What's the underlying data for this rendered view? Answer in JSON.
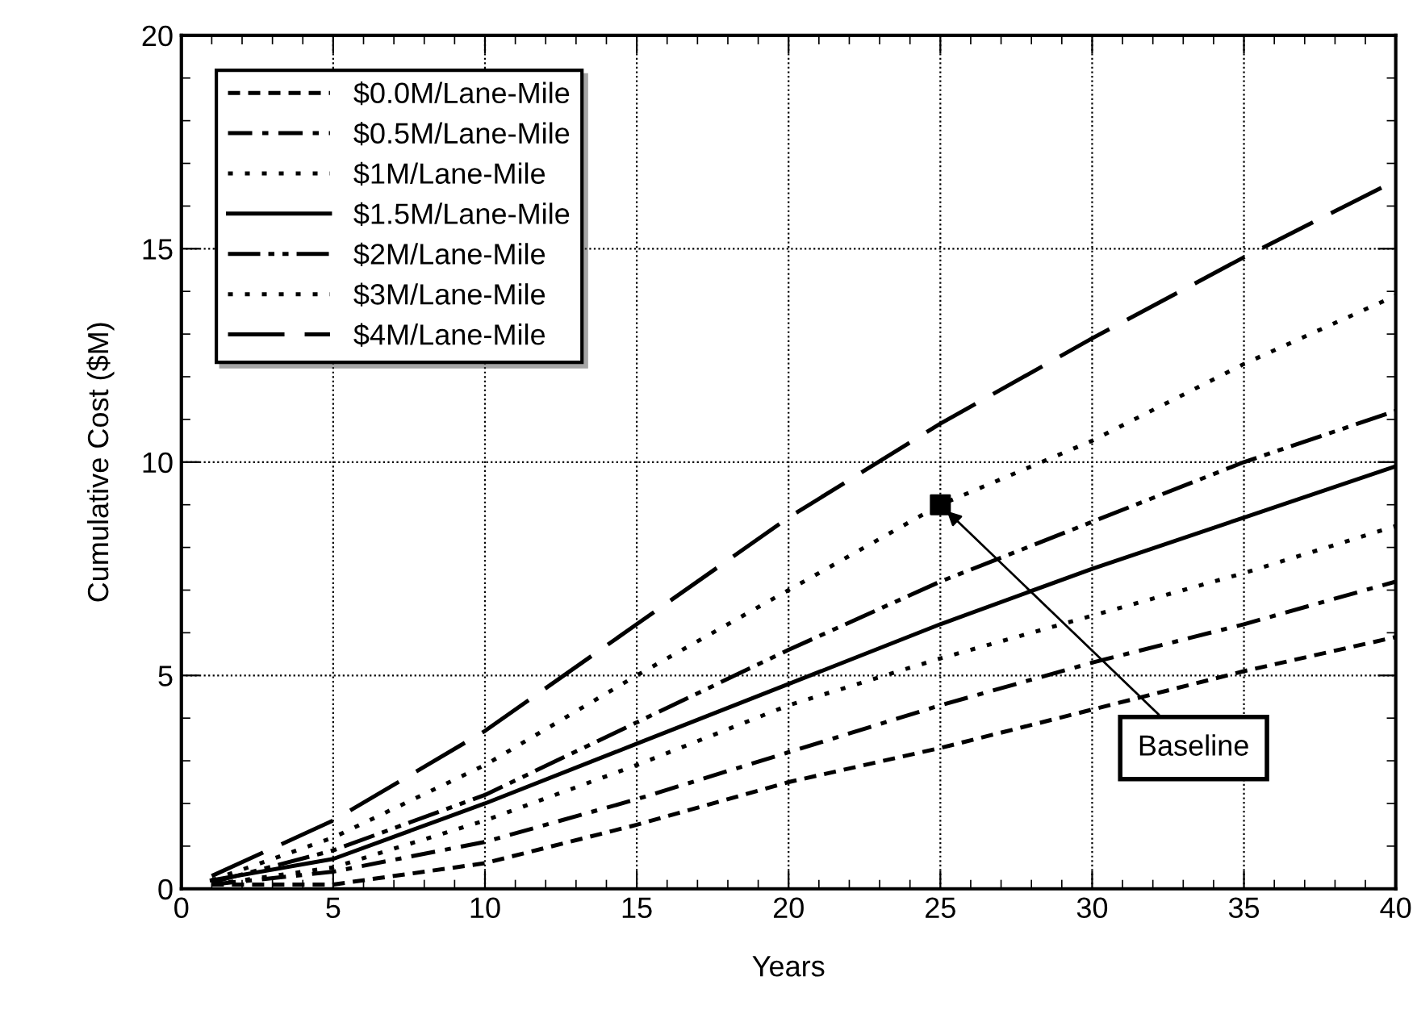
{
  "chart_data": {
    "type": "line",
    "xlabel": "Years",
    "ylabel": "Cumulative Cost ($M)",
    "xlim": [
      0,
      40
    ],
    "ylim": [
      0,
      20
    ],
    "xticks": [
      0,
      5,
      10,
      15,
      20,
      25,
      30,
      35,
      40
    ],
    "yticks": [
      0,
      5,
      10,
      15,
      20
    ],
    "grid": true,
    "legend": "top left",
    "marker": "none",
    "series": [
      {
        "name": "$0.0M/Lane-Mile",
        "color": "#000000",
        "line_style": "dashed",
        "x": [
          1,
          5,
          10,
          15,
          20,
          25,
          30,
          35,
          40
        ],
        "values": [
          0.1,
          0.1,
          0.6,
          1.5,
          2.5,
          3.3,
          4.2,
          5.1,
          5.9
        ]
      },
      {
        "name": "$0.5M/Lane-Mile",
        "color": "#000000",
        "line_style": "dashdot",
        "x": [
          1,
          5,
          10,
          15,
          20,
          25,
          30,
          35,
          40
        ],
        "values": [
          0.1,
          0.4,
          1.1,
          2.1,
          3.2,
          4.3,
          5.3,
          6.2,
          7.2
        ]
      },
      {
        "name": "$1M/Lane-Mile",
        "color": "#000000",
        "line_style": "dotted",
        "x": [
          1,
          5,
          10,
          15,
          20,
          25,
          30,
          35,
          40
        ],
        "values": [
          0.1,
          0.5,
          1.6,
          2.9,
          4.3,
          5.4,
          6.4,
          7.4,
          8.5
        ]
      },
      {
        "name": "$1.5M/Lane-Mile",
        "color": "#000000",
        "line_style": "solid",
        "x": [
          1,
          5,
          10,
          15,
          20,
          25,
          30,
          35,
          40
        ],
        "values": [
          0.2,
          0.7,
          2.0,
          3.4,
          4.8,
          6.2,
          7.5,
          8.7,
          9.9
        ]
      },
      {
        "name": "$2M/Lane-Mile",
        "color": "#000000",
        "line_style": "dashdotdot",
        "x": [
          1,
          5,
          10,
          15,
          20,
          25,
          30,
          35,
          40
        ],
        "values": [
          0.15,
          0.9,
          2.2,
          3.9,
          5.6,
          7.2,
          8.6,
          10.0,
          11.2
        ]
      },
      {
        "name": "$3M/Lane-Mile",
        "color": "#000000",
        "line_style": "dotted",
        "x": [
          1,
          5,
          10,
          15,
          20,
          25,
          30,
          35,
          40
        ],
        "values": [
          0.2,
          1.2,
          2.9,
          5.0,
          7.0,
          9.0,
          10.5,
          12.3,
          13.9
        ]
      },
      {
        "name": "$4M/Lane-Mile",
        "color": "#000000",
        "line_style": "longdash",
        "x": [
          1,
          5,
          10,
          15,
          20,
          25,
          30,
          35,
          40
        ],
        "values": [
          0.3,
          1.6,
          3.7,
          6.2,
          8.7,
          10.9,
          12.9,
          14.8,
          16.6
        ]
      },
      {
        "type": "scatter",
        "marker": "square",
        "color": "#000000",
        "x": [
          25
        ],
        "values": [
          9.0
        ]
      }
    ],
    "annotations": [
      {
        "text": "Baseline",
        "x": 25,
        "y": 9.0
      }
    ]
  }
}
